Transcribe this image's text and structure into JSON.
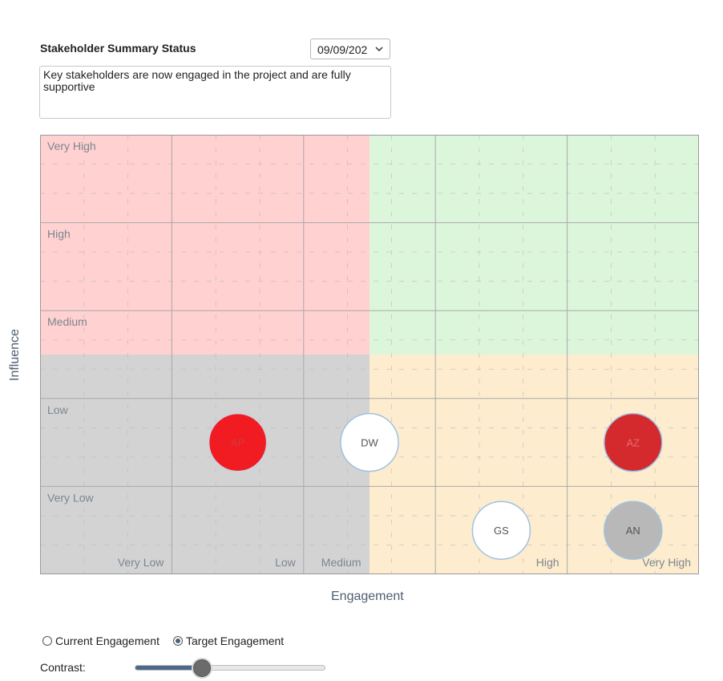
{
  "summary": {
    "title": "Stakeholder Summary Status",
    "date_value": "09/09/202",
    "text": "Key stakeholders are now engaged in the project and are fully supportive"
  },
  "matrix": {
    "influence_levels": [
      "Very High",
      "High",
      "Medium",
      "Low",
      "Very Low"
    ],
    "engagement_levels": [
      "Very Low",
      "Low",
      "Medium",
      "High",
      "Very High"
    ],
    "quadrant_colors": {
      "top_left": "#ffd1d1",
      "top_right": "#dcf6dc",
      "bottom_left": "#d3d3d3",
      "bottom_right": "#fdecce"
    },
    "stakeholders": [
      {
        "initials": "AP",
        "engagement": 1.5,
        "influence": 1.5,
        "fill": "#f01c22",
        "stroke": "#c8d0e0",
        "text_color": "#d13c3c"
      },
      {
        "initials": "DW",
        "engagement": 2.5,
        "influence": 1.5,
        "fill": "#ffffff",
        "stroke": "#9ec2e3",
        "text_color": "#555555"
      },
      {
        "initials": "AZ",
        "engagement": 4.5,
        "influence": 1.5,
        "fill": "#d42a2e",
        "stroke": "#9ec2e3",
        "text_color": "#e86a6a"
      },
      {
        "initials": "GS",
        "engagement": 3.5,
        "influence": 0.5,
        "fill": "#ffffff",
        "stroke": "#9ec2e3",
        "text_color": "#555555"
      },
      {
        "initials": "AN",
        "engagement": 4.5,
        "influence": 0.5,
        "fill": "#b8b8b8",
        "stroke": "#9ec2e3",
        "text_color": "#555555"
      }
    ]
  },
  "axes": {
    "x_title": "Engagement",
    "y_title": "Influence"
  },
  "controls": {
    "radio_current": "Current Engagement",
    "radio_target": "Target Engagement",
    "selected": "target",
    "contrast_label": "Contrast:",
    "contrast_value": 0.35
  }
}
